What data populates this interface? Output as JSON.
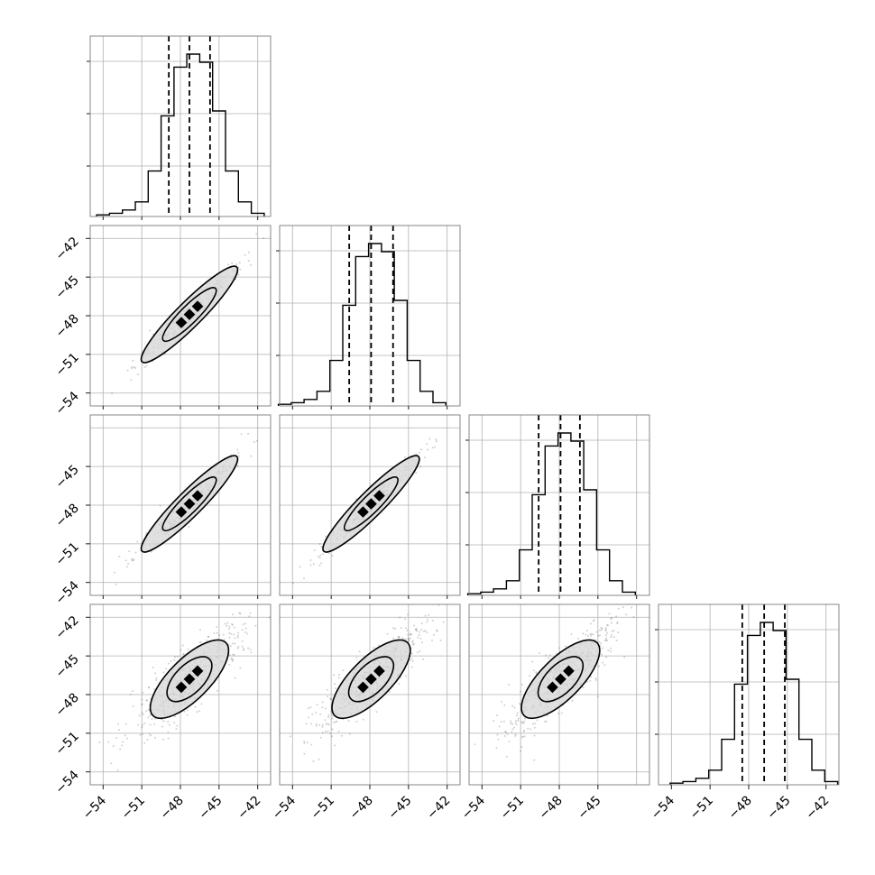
{
  "chart_data": {
    "type": "corner",
    "n_params": 4,
    "grid": true,
    "range": [
      -55,
      -41
    ],
    "ticks": [
      -54,
      -51,
      -48,
      -45,
      -42
    ],
    "tick_labels": [
      "−54",
      "−51",
      "−48",
      "−45",
      "−42"
    ],
    "histogram": {
      "bin_edges": [
        -54.5,
        -53.5,
        -52.5,
        -51.5,
        -50.5,
        -49.5,
        -48.5,
        -47.5,
        -46.5,
        -45.5,
        -44.5,
        -43.5,
        -42.5,
        -41.5
      ],
      "relative_counts": [
        0.01,
        0.02,
        0.04,
        0.09,
        0.28,
        0.62,
        0.92,
        1.0,
        0.95,
        0.65,
        0.28,
        0.09,
        0.02
      ]
    },
    "params": [
      {
        "mean": -47.3,
        "quantiles": [
          -48.9,
          -47.3,
          -45.7
        ],
        "hist_offset": 0.0
      },
      {
        "mean": -47.9,
        "quantiles": [
          -49.6,
          -47.9,
          -46.2
        ],
        "hist_offset": -0.6
      },
      {
        "mean": -47.9,
        "quantiles": [
          -49.6,
          -47.9,
          -46.4
        ],
        "hist_offset": -0.6
      },
      {
        "mean": -46.8,
        "quantiles": [
          -48.5,
          -46.8,
          -45.2
        ],
        "hist_offset": 0.4
      }
    ],
    "pairs": [
      {
        "row": 1,
        "col": 0,
        "row_tick_labels": [
          "−42",
          "−45",
          "−48",
          "−51",
          "−54"
        ]
      },
      {
        "row": 2,
        "col": 0,
        "row_tick_labels": [
          "−45",
          "−48",
          "−51",
          "−54"
        ]
      },
      {
        "row": 2,
        "col": 1
      },
      {
        "row": 3,
        "col": 0,
        "row_tick_labels": [
          "−42",
          "−45",
          "−48",
          "−51",
          "−54"
        ]
      },
      {
        "row": 3,
        "col": 1
      },
      {
        "row": 3,
        "col": 2
      }
    ],
    "bottom_tick_labels": [
      [
        "−54",
        "−51",
        "−48",
        "−45",
        "−42"
      ],
      [
        "−54",
        "−51",
        "−48",
        "−45",
        "−42"
      ],
      [
        "−54",
        "−51",
        "−48",
        "−45"
      ],
      [
        "−54",
        "−51",
        "−48",
        "−45",
        "−42"
      ]
    ],
    "colors": {
      "line": "#000000",
      "grid": "#b0b0b0",
      "frame": "#7a7a7a",
      "scatter": "#555555"
    }
  }
}
